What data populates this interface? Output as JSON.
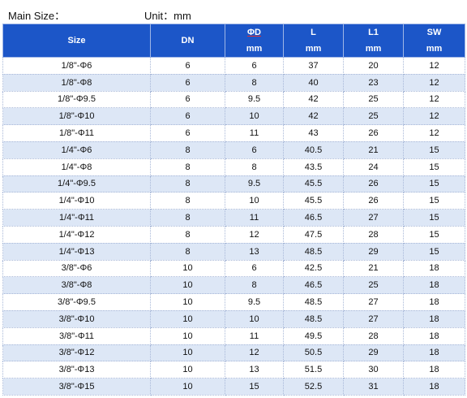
{
  "caption": {
    "main_size": "Main Size：",
    "unit": "Unit：mm"
  },
  "table": {
    "headers": [
      {
        "line1": "Size",
        "line2": ""
      },
      {
        "line1": "DN",
        "line2": ""
      },
      {
        "line1": "ΦD",
        "line2": "mm"
      },
      {
        "line1": "L",
        "line2": "mm"
      },
      {
        "line1": "L1",
        "line2": "mm"
      },
      {
        "line1": "SW",
        "line2": "mm"
      }
    ],
    "rows": [
      [
        "1/8\"-Φ6",
        "6",
        "6",
        "37",
        "20",
        "12"
      ],
      [
        "1/8\"-Φ8",
        "6",
        "8",
        "40",
        "23",
        "12"
      ],
      [
        "1/8\"-Φ9.5",
        "6",
        "9.5",
        "42",
        "25",
        "12"
      ],
      [
        "1/8\"-Φ10",
        "6",
        "10",
        "42",
        "25",
        "12"
      ],
      [
        "1/8\"-Φ11",
        "6",
        "11",
        "43",
        "26",
        "12"
      ],
      [
        "1/4\"-Φ6",
        "8",
        "6",
        "40.5",
        "21",
        "15"
      ],
      [
        "1/4\"-Φ8",
        "8",
        "8",
        "43.5",
        "24",
        "15"
      ],
      [
        "1/4\"-Φ9.5",
        "8",
        "9.5",
        "45.5",
        "26",
        "15"
      ],
      [
        "1/4\"-Φ10",
        "8",
        "10",
        "45.5",
        "26",
        "15"
      ],
      [
        "1/4\"-Φ11",
        "8",
        "11",
        "46.5",
        "27",
        "15"
      ],
      [
        "1/4\"-Φ12",
        "8",
        "12",
        "47.5",
        "28",
        "15"
      ],
      [
        "1/4\"-Φ13",
        "8",
        "13",
        "48.5",
        "29",
        "15"
      ],
      [
        "3/8\"-Φ6",
        "10",
        "6",
        "42.5",
        "21",
        "18"
      ],
      [
        "3/8\"-Φ8",
        "10",
        "8",
        "46.5",
        "25",
        "18"
      ],
      [
        "3/8\"-Φ9.5",
        "10",
        "9.5",
        "48.5",
        "27",
        "18"
      ],
      [
        "3/8\"-Φ10",
        "10",
        "10",
        "48.5",
        "27",
        "18"
      ],
      [
        "3/8\"-Φ11",
        "10",
        "11",
        "49.5",
        "28",
        "18"
      ],
      [
        "3/8\"-Φ12",
        "10",
        "12",
        "50.5",
        "29",
        "18"
      ],
      [
        "3/8\"-Φ13",
        "10",
        "13",
        "51.5",
        "30",
        "18"
      ],
      [
        "3/8\"-Φ15",
        "10",
        "15",
        "52.5",
        "31",
        "18"
      ]
    ]
  },
  "colors": {
    "header_bg": "#1c56c8",
    "header_text": "#ffffff",
    "stripe_bg": "#dde7f6"
  }
}
